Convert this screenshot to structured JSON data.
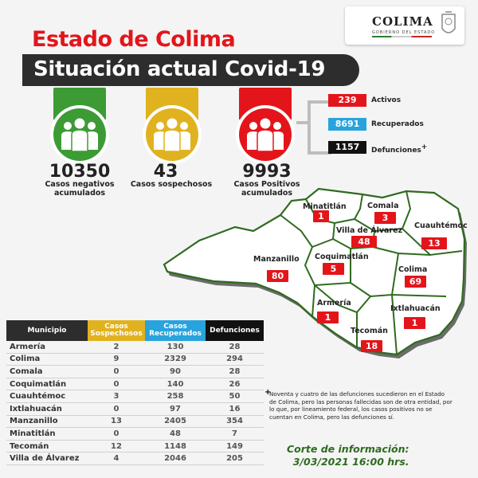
{
  "logo": {
    "name": "COLIMA",
    "subtitle": "GOBIERNO DEL ESTADO"
  },
  "title_line1": "Estado de Colima",
  "title_line2": "Situación actual Covid-19",
  "stats": [
    {
      "value": "10350",
      "label_l1": "Casos negativos",
      "label_l2": "acumulados",
      "color": "#3d9b35"
    },
    {
      "value": "43",
      "label_l1": "Casos sospechosos",
      "label_l2": "",
      "color": "#e1b21f"
    },
    {
      "value": "9993",
      "label_l1": "Casos Positivos",
      "label_l2": "acumulados",
      "color": "#e3151b"
    }
  ],
  "positivos_breakdown": [
    {
      "value": "239",
      "label": "Activos",
      "color": "#e3151b"
    },
    {
      "value": "8691",
      "label": "Recuperados",
      "color": "#29a3dd"
    },
    {
      "value": "1157",
      "label": "Defunciones",
      "mark": "+",
      "color": "#111111"
    }
  ],
  "map": {
    "colors": {
      "fill": "#ffffff",
      "stroke": "#2f6b1e",
      "shadow": "#6b6b6b"
    },
    "municipios": [
      {
        "name": "Minatitlán",
        "value": "1"
      },
      {
        "name": "Comala",
        "value": "3"
      },
      {
        "name": "Villa de Álvarez",
        "value": "48"
      },
      {
        "name": "Cuauhtémoc",
        "value": "13"
      },
      {
        "name": "Manzanillo",
        "value": "80"
      },
      {
        "name": "Coquimatlán",
        "value": "5"
      },
      {
        "name": "Colima",
        "value": "69"
      },
      {
        "name": "Armería",
        "value": "1"
      },
      {
        "name": "Ixtlahuacán",
        "value": "1"
      },
      {
        "name": "Tecomán",
        "value": "18"
      }
    ]
  },
  "table": {
    "headers": {
      "municipio": "Municipio",
      "sosp_l1": "Casos",
      "sosp_l2": "Sospechosos",
      "recup_l1": "Casos",
      "recup_l2": "Recuperados",
      "def": "Defunciones"
    },
    "header_colors": {
      "municipio": "#2d2d2d",
      "sosp": "#e1b21f",
      "recup": "#29a3dd",
      "def": "#111111"
    },
    "rows": [
      {
        "m": "Armería",
        "s": "2",
        "r": "130",
        "d": "28"
      },
      {
        "m": "Colima",
        "s": "9",
        "r": "2329",
        "d": "294"
      },
      {
        "m": "Comala",
        "s": "0",
        "r": "90",
        "d": "28"
      },
      {
        "m": "Coquimatlán",
        "s": "0",
        "r": "140",
        "d": "26"
      },
      {
        "m": "Cuauhtémoc",
        "s": "3",
        "r": "258",
        "d": "50"
      },
      {
        "m": "Ixtlahuacán",
        "s": "0",
        "r": "97",
        "d": "16"
      },
      {
        "m": "Manzanillo",
        "s": "13",
        "r": "2405",
        "d": "354"
      },
      {
        "m": "Minatitlán",
        "s": "0",
        "r": "48",
        "d": "7"
      },
      {
        "m": "Tecomán",
        "s": "12",
        "r": "1148",
        "d": "149"
      },
      {
        "m": "Villa de Álvarez",
        "s": "4",
        "r": "2046",
        "d": "205"
      }
    ]
  },
  "note": {
    "mark": "+",
    "text": "Noventa y cuatro de las defunciones sucedieron en el Estado de Colima, pero las personas fallecidas son de otra entidad, por lo que, por lineamiento federal, los casos positivos no se cuentan en Colima, pero las defunciones sí."
  },
  "corte": {
    "line1": "Corte de información:",
    "line2": "3/03/2021 16:00 hrs."
  }
}
